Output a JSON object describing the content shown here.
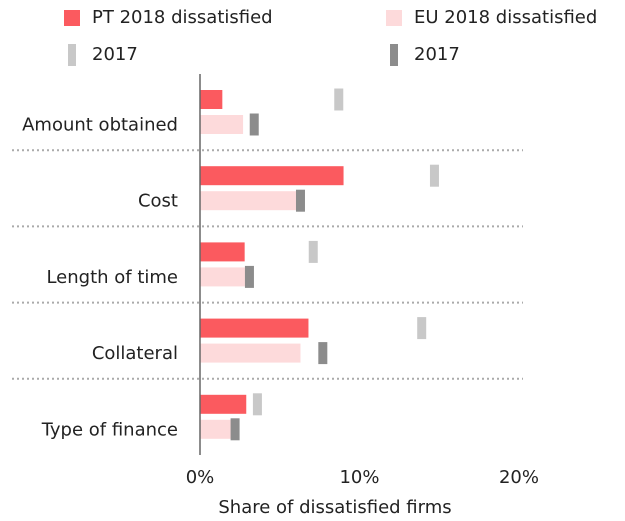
{
  "chart_data": {
    "type": "bar",
    "orientation": "horizontal",
    "x_label": "Share of dissatisfied firms",
    "categories": [
      "Amount obtained",
      "Cost",
      "Length of time",
      "Collateral",
      "Type of finance"
    ],
    "series": [
      {
        "name": "PT 2018 dissatisfied",
        "color": "#fb5a5f",
        "values": [
          1.4,
          9.0,
          2.8,
          6.8,
          2.9
        ]
      },
      {
        "name": "EU 2018 dissatisfied",
        "color": "#fddadb",
        "values": [
          2.7,
          6.1,
          2.9,
          6.3,
          2.0
        ]
      },
      {
        "name": "2017",
        "color": "#c8c8c8",
        "values": [
          8.7,
          14.7,
          7.1,
          13.9,
          3.6
        ]
      },
      {
        "name": "2017",
        "color": "#8c8c8c",
        "values": [
          3.4,
          6.3,
          3.1,
          7.7,
          2.2
        ]
      }
    ],
    "xlim": [
      0,
      20
    ],
    "xticks": [
      {
        "value": 0,
        "label": "0%"
      },
      {
        "value": 10,
        "label": "10%"
      },
      {
        "value": 20,
        "label": "20%"
      }
    ]
  }
}
